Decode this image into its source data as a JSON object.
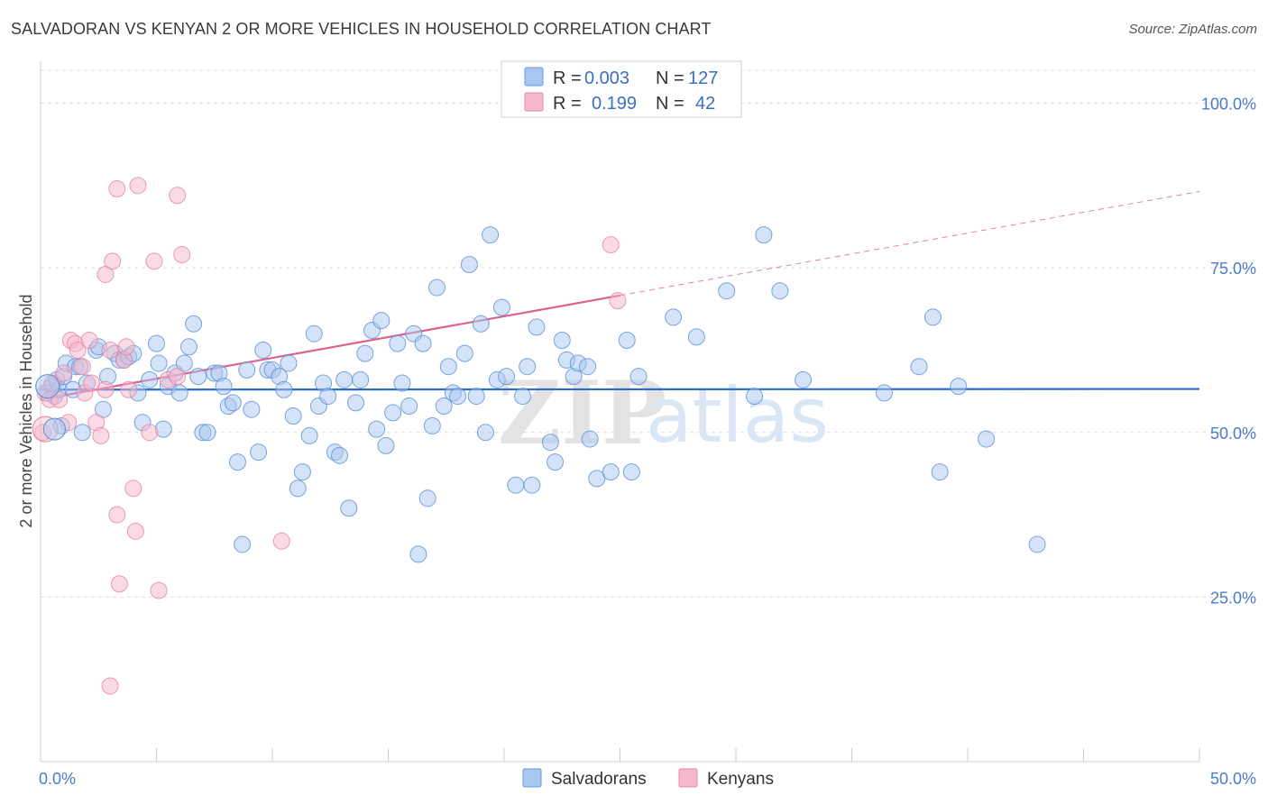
{
  "title": "SALVADORAN VS KENYAN 2 OR MORE VEHICLES IN HOUSEHOLD CORRELATION CHART",
  "source": "Source: ZipAtlas.com",
  "watermark": {
    "part1": "ZIP",
    "part2": "atlas"
  },
  "legend": {
    "rows": [
      {
        "r_label": "R = ",
        "r_value": "0.003",
        "n_label": "N = ",
        "n_value": "127",
        "color": "#a9c8f0"
      },
      {
        "r_label": "R = ",
        "r_value": "0.199",
        "n_label": "N = ",
        "n_value": "42",
        "color": "#f6b8cb"
      }
    ]
  },
  "bottom_legend": [
    "Salvadorans",
    "Kenyans"
  ],
  "chart_data": {
    "type": "scatter",
    "title": "SALVADORAN VS KENYAN 2 OR MORE VEHICLES IN HOUSEHOLD CORRELATION CHART",
    "xlabel": "",
    "ylabel": "2 or more Vehicles in Household",
    "xlim": [
      0,
      50
    ],
    "ylim": [
      0,
      105
    ],
    "x_tick_labels": [
      "0.0%",
      "50.0%"
    ],
    "y_tick_labels": [
      "25.0%",
      "50.0%",
      "75.0%",
      "100.0%"
    ],
    "y_ticks": [
      25,
      50,
      75,
      100
    ],
    "grid": true,
    "legend_position": "top-center",
    "series": [
      {
        "name": "Salvadorans",
        "color": "#5a8fd8",
        "fill": "#a9c8f0",
        "trend": {
          "x0": 0,
          "y0": 56.5,
          "x1": 50,
          "y1": 56.6,
          "color": "#2f6bc9"
        },
        "points": [
          [
            0.3,
            56.0
          ],
          [
            0.5,
            57.0
          ],
          [
            0.6,
            55.5
          ],
          [
            0.7,
            58.0
          ],
          [
            0.8,
            56.5
          ],
          [
            0.9,
            51.0
          ],
          [
            1.0,
            58.5
          ],
          [
            1.1,
            60.5
          ],
          [
            1.4,
            56.5
          ],
          [
            1.5,
            60.0
          ],
          [
            1.7,
            60.0
          ],
          [
            1.8,
            50.0
          ],
          [
            2.0,
            57.5
          ],
          [
            2.4,
            62.5
          ],
          [
            2.5,
            63.0
          ],
          [
            2.7,
            53.5
          ],
          [
            2.9,
            58.5
          ],
          [
            3.2,
            62.0
          ],
          [
            3.4,
            61.0
          ],
          [
            3.6,
            61.0
          ],
          [
            3.8,
            61.5
          ],
          [
            4.0,
            62.0
          ],
          [
            4.2,
            56.0
          ],
          [
            4.4,
            51.5
          ],
          [
            4.7,
            58.0
          ],
          [
            5.0,
            63.5
          ],
          [
            5.1,
            60.5
          ],
          [
            5.3,
            50.5
          ],
          [
            5.5,
            57.0
          ],
          [
            5.8,
            59.0
          ],
          [
            6.0,
            56.0
          ],
          [
            6.2,
            60.5
          ],
          [
            6.4,
            63.0
          ],
          [
            6.6,
            66.5
          ],
          [
            6.8,
            58.5
          ],
          [
            7.0,
            50.0
          ],
          [
            7.2,
            50.0
          ],
          [
            7.5,
            59.0
          ],
          [
            7.7,
            59.0
          ],
          [
            7.9,
            57.0
          ],
          [
            8.1,
            54.0
          ],
          [
            8.3,
            54.5
          ],
          [
            8.5,
            45.5
          ],
          [
            8.7,
            33.0
          ],
          [
            8.9,
            59.5
          ],
          [
            9.1,
            53.5
          ],
          [
            9.4,
            47.0
          ],
          [
            9.6,
            62.5
          ],
          [
            9.8,
            59.5
          ],
          [
            10.0,
            59.5
          ],
          [
            10.3,
            58.5
          ],
          [
            10.5,
            56.5
          ],
          [
            10.7,
            60.5
          ],
          [
            10.9,
            52.5
          ],
          [
            11.1,
            41.5
          ],
          [
            11.3,
            44.0
          ],
          [
            11.6,
            49.5
          ],
          [
            11.8,
            65.0
          ],
          [
            12.0,
            54.0
          ],
          [
            12.2,
            57.5
          ],
          [
            12.4,
            55.5
          ],
          [
            12.7,
            47.0
          ],
          [
            12.9,
            46.5
          ],
          [
            13.1,
            58.0
          ],
          [
            13.3,
            38.5
          ],
          [
            13.6,
            54.5
          ],
          [
            13.8,
            58.0
          ],
          [
            14.0,
            62.0
          ],
          [
            14.3,
            65.5
          ],
          [
            14.5,
            50.5
          ],
          [
            14.7,
            67.0
          ],
          [
            14.9,
            48.0
          ],
          [
            15.2,
            53.0
          ],
          [
            15.4,
            63.5
          ],
          [
            15.6,
            57.5
          ],
          [
            15.9,
            54.0
          ],
          [
            16.1,
            65.0
          ],
          [
            16.3,
            31.5
          ],
          [
            16.5,
            63.5
          ],
          [
            16.7,
            40.0
          ],
          [
            16.9,
            51.0
          ],
          [
            17.1,
            72.0
          ],
          [
            17.4,
            54.0
          ],
          [
            17.6,
            60.0
          ],
          [
            17.8,
            56.0
          ],
          [
            18.0,
            55.5
          ],
          [
            18.3,
            62.0
          ],
          [
            18.5,
            75.5
          ],
          [
            18.8,
            55.5
          ],
          [
            19.0,
            66.5
          ],
          [
            19.2,
            50.0
          ],
          [
            19.4,
            80.0
          ],
          [
            19.7,
            58.0
          ],
          [
            19.9,
            69.0
          ],
          [
            20.1,
            58.5
          ],
          [
            20.5,
            42.0
          ],
          [
            20.8,
            55.5
          ],
          [
            21.0,
            60.0
          ],
          [
            21.2,
            42.0
          ],
          [
            21.4,
            66.0
          ],
          [
            22.0,
            48.5
          ],
          [
            22.2,
            45.5
          ],
          [
            22.5,
            64.0
          ],
          [
            22.7,
            61.0
          ],
          [
            23.0,
            58.5
          ],
          [
            23.2,
            60.5
          ],
          [
            23.7,
            49.0
          ],
          [
            23.6,
            60.0
          ],
          [
            24.0,
            43.0
          ],
          [
            24.6,
            44.0
          ],
          [
            25.3,
            64.0
          ],
          [
            25.5,
            44.0
          ],
          [
            25.8,
            58.5
          ],
          [
            27.3,
            67.5
          ],
          [
            28.3,
            64.5
          ],
          [
            29.6,
            71.5
          ],
          [
            30.8,
            55.5
          ],
          [
            31.2,
            80.0
          ],
          [
            31.9,
            71.5
          ],
          [
            32.9,
            58.0
          ],
          [
            36.4,
            56.0
          ],
          [
            37.9,
            60.0
          ],
          [
            38.5,
            67.5
          ],
          [
            38.8,
            44.0
          ],
          [
            39.6,
            57.0
          ],
          [
            40.8,
            49.0
          ],
          [
            43.0,
            33.0
          ]
        ]
      },
      {
        "name": "Kenyans",
        "color": "#e8829f",
        "fill": "#f6b8cb",
        "trend": {
          "x0": 0,
          "y0": 55.0,
          "x1": 25.0,
          "y1": 70.8,
          "color": "#e0608c",
          "dashed_to_x": 50,
          "dashed_to_y": 86.6
        },
        "points": [
          [
            0.1,
            50.0
          ],
          [
            0.2,
            56.0
          ],
          [
            0.4,
            55.0
          ],
          [
            0.5,
            57.5
          ],
          [
            0.8,
            55.0
          ],
          [
            1.0,
            59.0
          ],
          [
            1.2,
            51.5
          ],
          [
            1.3,
            64.0
          ],
          [
            1.5,
            63.5
          ],
          [
            1.6,
            62.5
          ],
          [
            1.8,
            60.0
          ],
          [
            1.9,
            56.0
          ],
          [
            2.1,
            64.0
          ],
          [
            2.2,
            57.5
          ],
          [
            2.4,
            51.5
          ],
          [
            2.6,
            49.5
          ],
          [
            2.8,
            56.5
          ],
          [
            2.8,
            74.0
          ],
          [
            3.0,
            62.5
          ],
          [
            3.1,
            76.0
          ],
          [
            3.3,
            37.5
          ],
          [
            3.3,
            87.0
          ],
          [
            3.4,
            27.0
          ],
          [
            3.6,
            61.0
          ],
          [
            3.7,
            63.0
          ],
          [
            3.8,
            56.5
          ],
          [
            4.0,
            41.5
          ],
          [
            4.1,
            35.0
          ],
          [
            4.2,
            87.5
          ],
          [
            4.7,
            50.0
          ],
          [
            4.9,
            76.0
          ],
          [
            5.1,
            26.0
          ],
          [
            5.5,
            58.0
          ],
          [
            5.9,
            58.5
          ],
          [
            5.9,
            86.0
          ],
          [
            6.1,
            77.0
          ],
          [
            10.4,
            33.5
          ],
          [
            24.6,
            78.5
          ],
          [
            24.9,
            70.0
          ],
          [
            3.0,
            11.5
          ]
        ]
      }
    ]
  }
}
